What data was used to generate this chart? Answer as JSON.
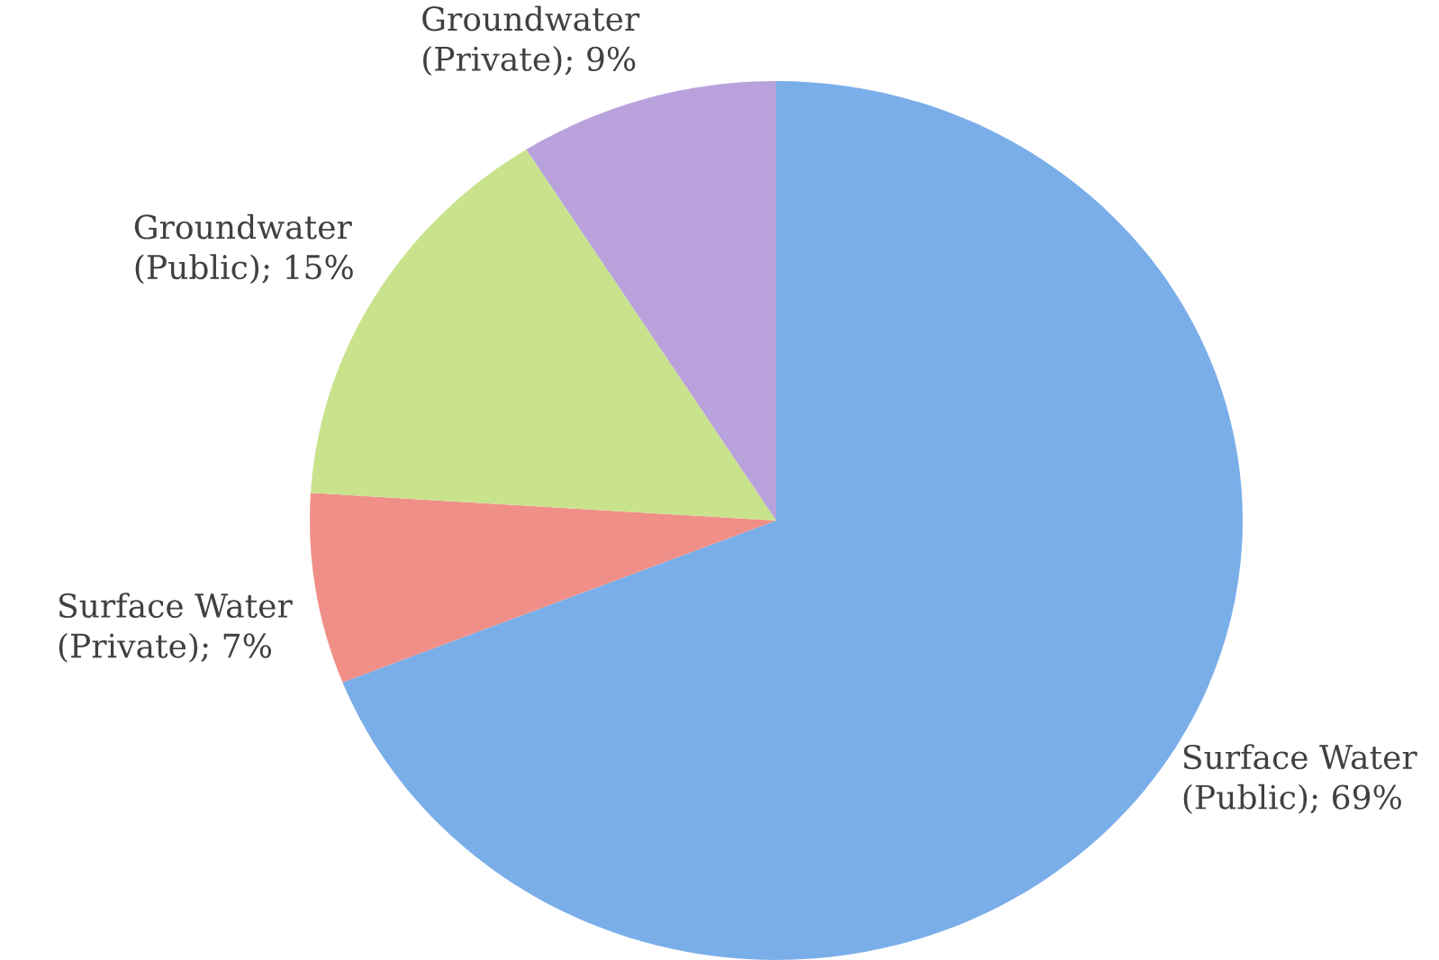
{
  "chart_data": {
    "type": "pie",
    "categories": [
      "Surface Water (Public)",
      "Surface Water (Private)",
      "Groundwater (Public)",
      "Groundwater (Private)"
    ],
    "values": [
      69,
      7,
      15,
      9
    ],
    "value_labels": [
      "69%",
      "7%",
      "15%",
      "9%"
    ],
    "colors": [
      "#7aaee9",
      "#f08f88",
      "#c8e38c",
      "#b9a2dc"
    ]
  }
}
